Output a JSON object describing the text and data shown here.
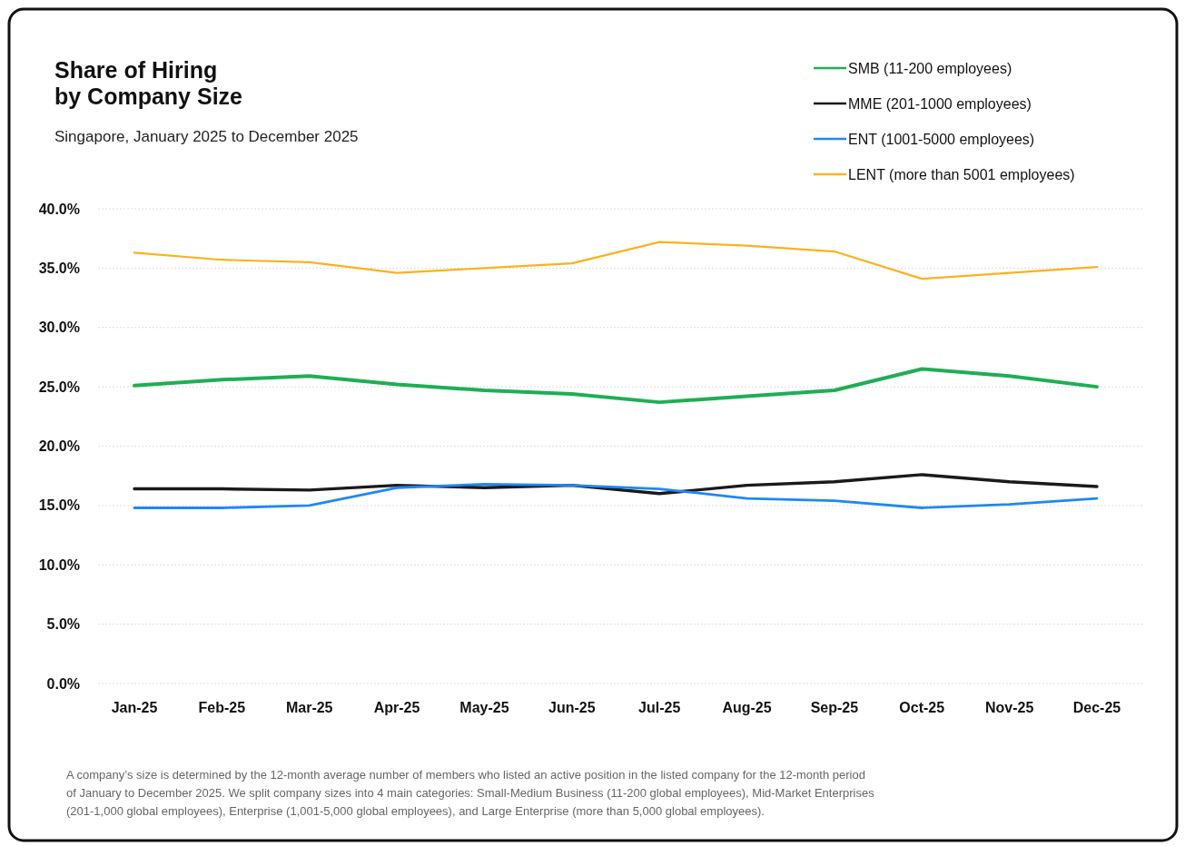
{
  "chart_data": {
    "type": "line",
    "title": "Share of Hiring\nby Company Size",
    "subtitle": "Singapore, January 2025 to December 2025",
    "categories": [
      "Jan-25",
      "Feb-25",
      "Mar-25",
      "Apr-25",
      "May-25",
      "Jun-25",
      "Jul-25",
      "Aug-25",
      "Sep-25",
      "Oct-25",
      "Nov-25",
      "Dec-25"
    ],
    "series": [
      {
        "name": "SMB (11-200 employees)",
        "color": "#1fae55",
        "values": [
          25.1,
          25.6,
          25.9,
          25.2,
          24.7,
          24.4,
          23.7,
          24.2,
          24.7,
          26.5,
          25.9,
          25.0
        ]
      },
      {
        "name": "MME (201-1000 employees)",
        "color": "#1a1a1a",
        "values": [
          16.4,
          16.4,
          16.3,
          16.7,
          16.5,
          16.7,
          16.0,
          16.7,
          17.0,
          17.6,
          17.0,
          16.6
        ]
      },
      {
        "name": "ENT (1001-5000 employees)",
        "color": "#1e88f5",
        "values": [
          14.8,
          14.8,
          15.0,
          16.5,
          16.8,
          16.7,
          16.4,
          15.6,
          15.4,
          14.8,
          15.1,
          15.6
        ]
      },
      {
        "name": "LENT (more than 5001 employees)",
        "color": "#fbb21c",
        "values": [
          36.3,
          35.7,
          35.5,
          34.6,
          35.0,
          35.4,
          37.2,
          36.9,
          36.4,
          34.1,
          34.6,
          35.1
        ]
      }
    ],
    "ylim": [
      0,
      40
    ],
    "yticks": [
      {
        "value": 0,
        "label": "0.0%"
      },
      {
        "value": 5,
        "label": "5.0%"
      },
      {
        "value": 10,
        "label": "10.0%"
      },
      {
        "value": 15,
        "label": "15.0%"
      },
      {
        "value": 20,
        "label": "20.0%"
      },
      {
        "value": 25,
        "label": "25.0%"
      },
      {
        "value": 30,
        "label": "30.0%"
      },
      {
        "value": 35,
        "label": "35.0%"
      },
      {
        "value": 40,
        "label": "40.0%"
      }
    ],
    "grid": "y",
    "legend": "top right",
    "marker": "none",
    "line_style": "solid",
    "annotations": [
      "A company’s size is determined by the 12-month average number of members who listed an active position in the listed company for the 12-month period of January to December 2025. We split company sizes into 4 main categories: Small-Medium Business (11-200 global employees), Mid-Market Enterprises (201-1,000 global employees), Enterprise (1,001-5,000 global employees), and Large Enterprise (more than 5,000 global employees)."
    ]
  }
}
